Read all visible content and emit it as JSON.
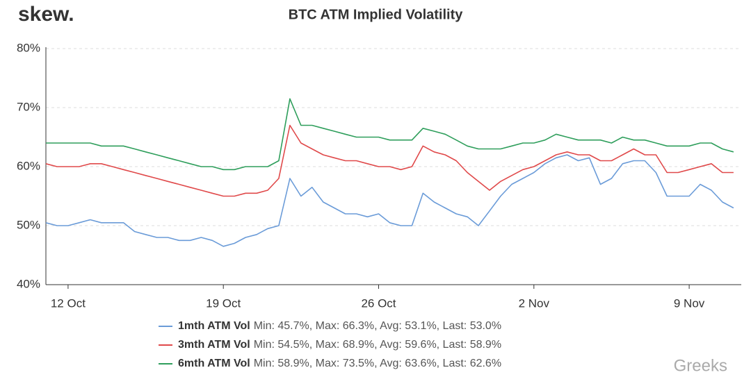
{
  "chart_data": {
    "type": "line",
    "title": "BTC ATM Implied Volatility",
    "logo": "skew.",
    "watermark": "Greeks",
    "categories": [
      null,
      null,
      "12 Oct",
      null,
      null,
      null,
      null,
      null,
      null,
      null,
      null,
      null,
      null,
      null,
      null,
      null,
      "19 Oct",
      null,
      null,
      null,
      null,
      null,
      null,
      null,
      null,
      null,
      null,
      null,
      null,
      null,
      "26 Oct",
      null,
      null,
      null,
      null,
      null,
      null,
      null,
      null,
      null,
      null,
      null,
      null,
      null,
      "2 Nov",
      null,
      null,
      null,
      null,
      null,
      null,
      null,
      null,
      null,
      null,
      null,
      null,
      null,
      "9 Nov",
      null,
      null,
      null,
      null
    ],
    "ylim": [
      40,
      80
    ],
    "yticks": [
      {
        "value": 40,
        "label": "40%"
      },
      {
        "value": 50,
        "label": "50%"
      },
      {
        "value": 60,
        "label": "60%"
      },
      {
        "value": 70,
        "label": "70%"
      },
      {
        "value": 80,
        "label": "80%"
      }
    ],
    "grid": true,
    "series": [
      {
        "name": "1mth ATM Vol",
        "stats": "Min: 45.7%, Max: 66.3%, Avg: 53.1%, Last: 53.0%",
        "color": "#6a9bd8",
        "values": [
          50.5,
          50,
          50,
          50.5,
          51,
          50.5,
          50.5,
          50.5,
          49,
          48.5,
          48,
          48,
          47.5,
          47.5,
          48,
          47.5,
          46.5,
          47,
          48,
          48.5,
          49.5,
          50,
          58,
          55,
          56.5,
          54,
          53,
          52,
          52,
          51.5,
          52,
          50.5,
          50,
          50,
          55.5,
          54,
          53,
          52,
          51.5,
          50,
          52.5,
          55,
          57,
          58,
          59,
          60.5,
          61.5,
          62,
          61,
          61.5,
          57,
          58,
          60.5,
          61,
          61,
          59,
          55,
          55,
          55,
          57,
          56,
          54,
          53
        ]
      },
      {
        "name": "3mth ATM Vol",
        "stats": "Min: 54.5%, Max: 68.9%, Avg: 59.6%, Last: 58.9%",
        "color": "#e0494a",
        "values": [
          60.5,
          60,
          60,
          60,
          60.5,
          60.5,
          60,
          59.5,
          59,
          58.5,
          58,
          57.5,
          57,
          56.5,
          56,
          55.5,
          55,
          55,
          55.5,
          55.5,
          56,
          58,
          67,
          64,
          63,
          62,
          61.5,
          61,
          61,
          60.5,
          60,
          60,
          59.5,
          60,
          63.5,
          62.5,
          62,
          61,
          59,
          57.5,
          56,
          57.5,
          58.5,
          59.5,
          60,
          61,
          62,
          62.5,
          62,
          62,
          61,
          61,
          62,
          63,
          62,
          62,
          59,
          59,
          59.5,
          60,
          60.5,
          59,
          59
        ]
      },
      {
        "name": "6mth ATM Vol",
        "stats": "Min: 58.9%, Max: 73.5%, Avg: 63.6%, Last: 62.6%",
        "color": "#2e9e5b",
        "values": [
          64,
          64,
          64,
          64,
          64,
          63.5,
          63.5,
          63.5,
          63,
          62.5,
          62,
          61.5,
          61,
          60.5,
          60,
          60,
          59.5,
          59.5,
          60,
          60,
          60,
          61,
          71.5,
          67,
          67,
          66.5,
          66,
          65.5,
          65,
          65,
          65,
          64.5,
          64.5,
          64.5,
          66.5,
          66,
          65.5,
          64.5,
          63.5,
          63,
          63,
          63,
          63.5,
          64,
          64,
          64.5,
          65.5,
          65,
          64.5,
          64.5,
          64.5,
          64,
          65,
          64.5,
          64.5,
          64,
          63.5,
          63.5,
          63.5,
          64,
          64,
          63,
          62.5
        ]
      }
    ]
  }
}
